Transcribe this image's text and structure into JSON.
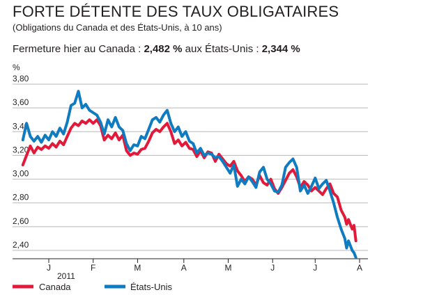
{
  "title": "FORTE DÉTENTE DES TAUX OBLIGATAIRES",
  "subtitle": "(Obligations du Canada et des États-Unis, à 10 ans)",
  "closing": {
    "prefix": "Fermeture hier au Canada : ",
    "canada_value": "2,482 %",
    "middle": " aux États-Unis : ",
    "us_value": "2,344 %"
  },
  "colors": {
    "canada": "#e3193a",
    "us": "#0f7bc0",
    "grid": "#b8b8b8"
  },
  "chart_data": {
    "type": "line",
    "ylabel": "%",
    "ylim": [
      2.35,
      3.85
    ],
    "y_ticks": [
      "3,80",
      "3,60",
      "3,40",
      "3,20",
      "3,00",
      "2,80",
      "2,60",
      "2,40"
    ],
    "y_tick_values": [
      3.8,
      3.6,
      3.4,
      3.2,
      3.0,
      2.8,
      2.6,
      2.4
    ],
    "x_ticks": [
      "J",
      "F",
      "M",
      "A",
      "M",
      "J",
      "J",
      "A"
    ],
    "x_tick_positions": [
      0.07,
      0.19,
      0.31,
      0.435,
      0.555,
      0.675,
      0.79,
      0.91
    ],
    "year_label": "2011",
    "xlim": [
      0,
      0.96
    ],
    "grid": true,
    "legend_position": "bottom",
    "series": [
      {
        "name": "Canada",
        "color": "#e3193a",
        "points": [
          [
            0.0,
            3.12
          ],
          [
            0.01,
            3.2
          ],
          [
            0.02,
            3.28
          ],
          [
            0.03,
            3.22
          ],
          [
            0.04,
            3.27
          ],
          [
            0.05,
            3.25
          ],
          [
            0.06,
            3.28
          ],
          [
            0.07,
            3.26
          ],
          [
            0.08,
            3.3
          ],
          [
            0.09,
            3.27
          ],
          [
            0.1,
            3.32
          ],
          [
            0.11,
            3.29
          ],
          [
            0.12,
            3.36
          ],
          [
            0.13,
            3.43
          ],
          [
            0.14,
            3.47
          ],
          [
            0.15,
            3.45
          ],
          [
            0.16,
            3.49
          ],
          [
            0.17,
            3.47
          ],
          [
            0.18,
            3.5
          ],
          [
            0.19,
            3.47
          ],
          [
            0.2,
            3.5
          ],
          [
            0.21,
            3.45
          ],
          [
            0.22,
            3.33
          ],
          [
            0.23,
            3.37
          ],
          [
            0.24,
            3.34
          ],
          [
            0.25,
            3.39
          ],
          [
            0.26,
            3.33
          ],
          [
            0.27,
            3.37
          ],
          [
            0.28,
            3.24
          ],
          [
            0.29,
            3.2
          ],
          [
            0.3,
            3.22
          ],
          [
            0.31,
            3.21
          ],
          [
            0.32,
            3.25
          ],
          [
            0.33,
            3.26
          ],
          [
            0.34,
            3.32
          ],
          [
            0.35,
            3.39
          ],
          [
            0.36,
            3.42
          ],
          [
            0.37,
            3.4
          ],
          [
            0.38,
            3.44
          ],
          [
            0.39,
            3.47
          ],
          [
            0.4,
            3.4
          ],
          [
            0.41,
            3.3
          ],
          [
            0.42,
            3.33
          ],
          [
            0.43,
            3.28
          ],
          [
            0.44,
            3.31
          ],
          [
            0.45,
            3.26
          ],
          [
            0.46,
            3.25
          ],
          [
            0.47,
            3.19
          ],
          [
            0.48,
            3.24
          ],
          [
            0.49,
            3.18
          ],
          [
            0.5,
            3.23
          ],
          [
            0.51,
            3.22
          ],
          [
            0.52,
            3.15
          ],
          [
            0.53,
            3.21
          ],
          [
            0.54,
            3.17
          ],
          [
            0.55,
            3.13
          ],
          [
            0.56,
            3.11
          ],
          [
            0.57,
            3.15
          ],
          [
            0.58,
            3.07
          ],
          [
            0.59,
            3.03
          ],
          [
            0.6,
            2.98
          ],
          [
            0.61,
            3.02
          ],
          [
            0.62,
            3.0
          ],
          [
            0.63,
            2.95
          ],
          [
            0.64,
            3.03
          ],
          [
            0.65,
            2.97
          ],
          [
            0.66,
            2.95
          ],
          [
            0.67,
            3.0
          ],
          [
            0.68,
            2.92
          ],
          [
            0.69,
            2.88
          ],
          [
            0.7,
            2.93
          ],
          [
            0.71,
            2.99
          ],
          [
            0.72,
            3.05
          ],
          [
            0.73,
            3.08
          ],
          [
            0.74,
            3.02
          ],
          [
            0.75,
            2.93
          ],
          [
            0.76,
            2.98
          ],
          [
            0.77,
            2.95
          ],
          [
            0.78,
            2.9
          ],
          [
            0.79,
            2.93
          ],
          [
            0.8,
            2.9
          ],
          [
            0.81,
            2.87
          ],
          [
            0.82,
            2.92
          ],
          [
            0.83,
            2.96
          ],
          [
            0.84,
            2.88
          ],
          [
            0.85,
            2.85
          ],
          [
            0.86,
            2.74
          ],
          [
            0.87,
            2.68
          ],
          [
            0.875,
            2.62
          ],
          [
            0.88,
            2.66
          ],
          [
            0.89,
            2.58
          ],
          [
            0.895,
            2.61
          ],
          [
            0.9,
            2.48
          ]
        ]
      },
      {
        "name": "États-Unis",
        "color": "#0f7bc0",
        "points": [
          [
            0.0,
            3.33
          ],
          [
            0.01,
            3.47
          ],
          [
            0.02,
            3.36
          ],
          [
            0.03,
            3.32
          ],
          [
            0.04,
            3.36
          ],
          [
            0.05,
            3.31
          ],
          [
            0.06,
            3.37
          ],
          [
            0.07,
            3.33
          ],
          [
            0.08,
            3.4
          ],
          [
            0.09,
            3.36
          ],
          [
            0.1,
            3.43
          ],
          [
            0.11,
            3.38
          ],
          [
            0.12,
            3.48
          ],
          [
            0.13,
            3.62
          ],
          [
            0.14,
            3.64
          ],
          [
            0.15,
            3.74
          ],
          [
            0.16,
            3.6
          ],
          [
            0.17,
            3.63
          ],
          [
            0.18,
            3.58
          ],
          [
            0.19,
            3.56
          ],
          [
            0.2,
            3.54
          ],
          [
            0.21,
            3.48
          ],
          [
            0.22,
            3.38
          ],
          [
            0.23,
            3.5
          ],
          [
            0.24,
            3.44
          ],
          [
            0.25,
            3.52
          ],
          [
            0.26,
            3.44
          ],
          [
            0.27,
            3.41
          ],
          [
            0.28,
            3.3
          ],
          [
            0.29,
            3.24
          ],
          [
            0.3,
            3.29
          ],
          [
            0.31,
            3.28
          ],
          [
            0.32,
            3.36
          ],
          [
            0.33,
            3.34
          ],
          [
            0.34,
            3.42
          ],
          [
            0.35,
            3.5
          ],
          [
            0.36,
            3.52
          ],
          [
            0.37,
            3.48
          ],
          [
            0.38,
            3.54
          ],
          [
            0.39,
            3.58
          ],
          [
            0.4,
            3.47
          ],
          [
            0.41,
            3.4
          ],
          [
            0.42,
            3.44
          ],
          [
            0.43,
            3.36
          ],
          [
            0.44,
            3.4
          ],
          [
            0.45,
            3.32
          ],
          [
            0.46,
            3.3
          ],
          [
            0.47,
            3.22
          ],
          [
            0.48,
            3.26
          ],
          [
            0.49,
            3.2
          ],
          [
            0.5,
            3.22
          ],
          [
            0.51,
            3.21
          ],
          [
            0.52,
            3.18
          ],
          [
            0.53,
            3.19
          ],
          [
            0.54,
            3.15
          ],
          [
            0.55,
            3.1
          ],
          [
            0.56,
            3.05
          ],
          [
            0.57,
            3.12
          ],
          [
            0.58,
            2.94
          ],
          [
            0.59,
            3.0
          ],
          [
            0.6,
            2.96
          ],
          [
            0.61,
            3.02
          ],
          [
            0.62,
            2.98
          ],
          [
            0.63,
            2.93
          ],
          [
            0.64,
            3.06
          ],
          [
            0.65,
            3.1
          ],
          [
            0.66,
            3.0
          ],
          [
            0.67,
            2.96
          ],
          [
            0.68,
            2.9
          ],
          [
            0.69,
            2.89
          ],
          [
            0.7,
            2.95
          ],
          [
            0.71,
            3.1
          ],
          [
            0.72,
            3.14
          ],
          [
            0.73,
            3.17
          ],
          [
            0.74,
            3.1
          ],
          [
            0.75,
            2.9
          ],
          [
            0.76,
            2.95
          ],
          [
            0.77,
            2.88
          ],
          [
            0.78,
            2.94
          ],
          [
            0.79,
            3.01
          ],
          [
            0.8,
            2.92
          ],
          [
            0.81,
            2.96
          ],
          [
            0.82,
            2.99
          ],
          [
            0.83,
            2.9
          ],
          [
            0.84,
            2.8
          ],
          [
            0.85,
            2.68
          ],
          [
            0.86,
            2.58
          ],
          [
            0.87,
            2.5
          ],
          [
            0.875,
            2.42
          ],
          [
            0.88,
            2.48
          ],
          [
            0.89,
            2.4
          ],
          [
            0.895,
            2.38
          ],
          [
            0.9,
            2.34
          ]
        ]
      }
    ]
  }
}
